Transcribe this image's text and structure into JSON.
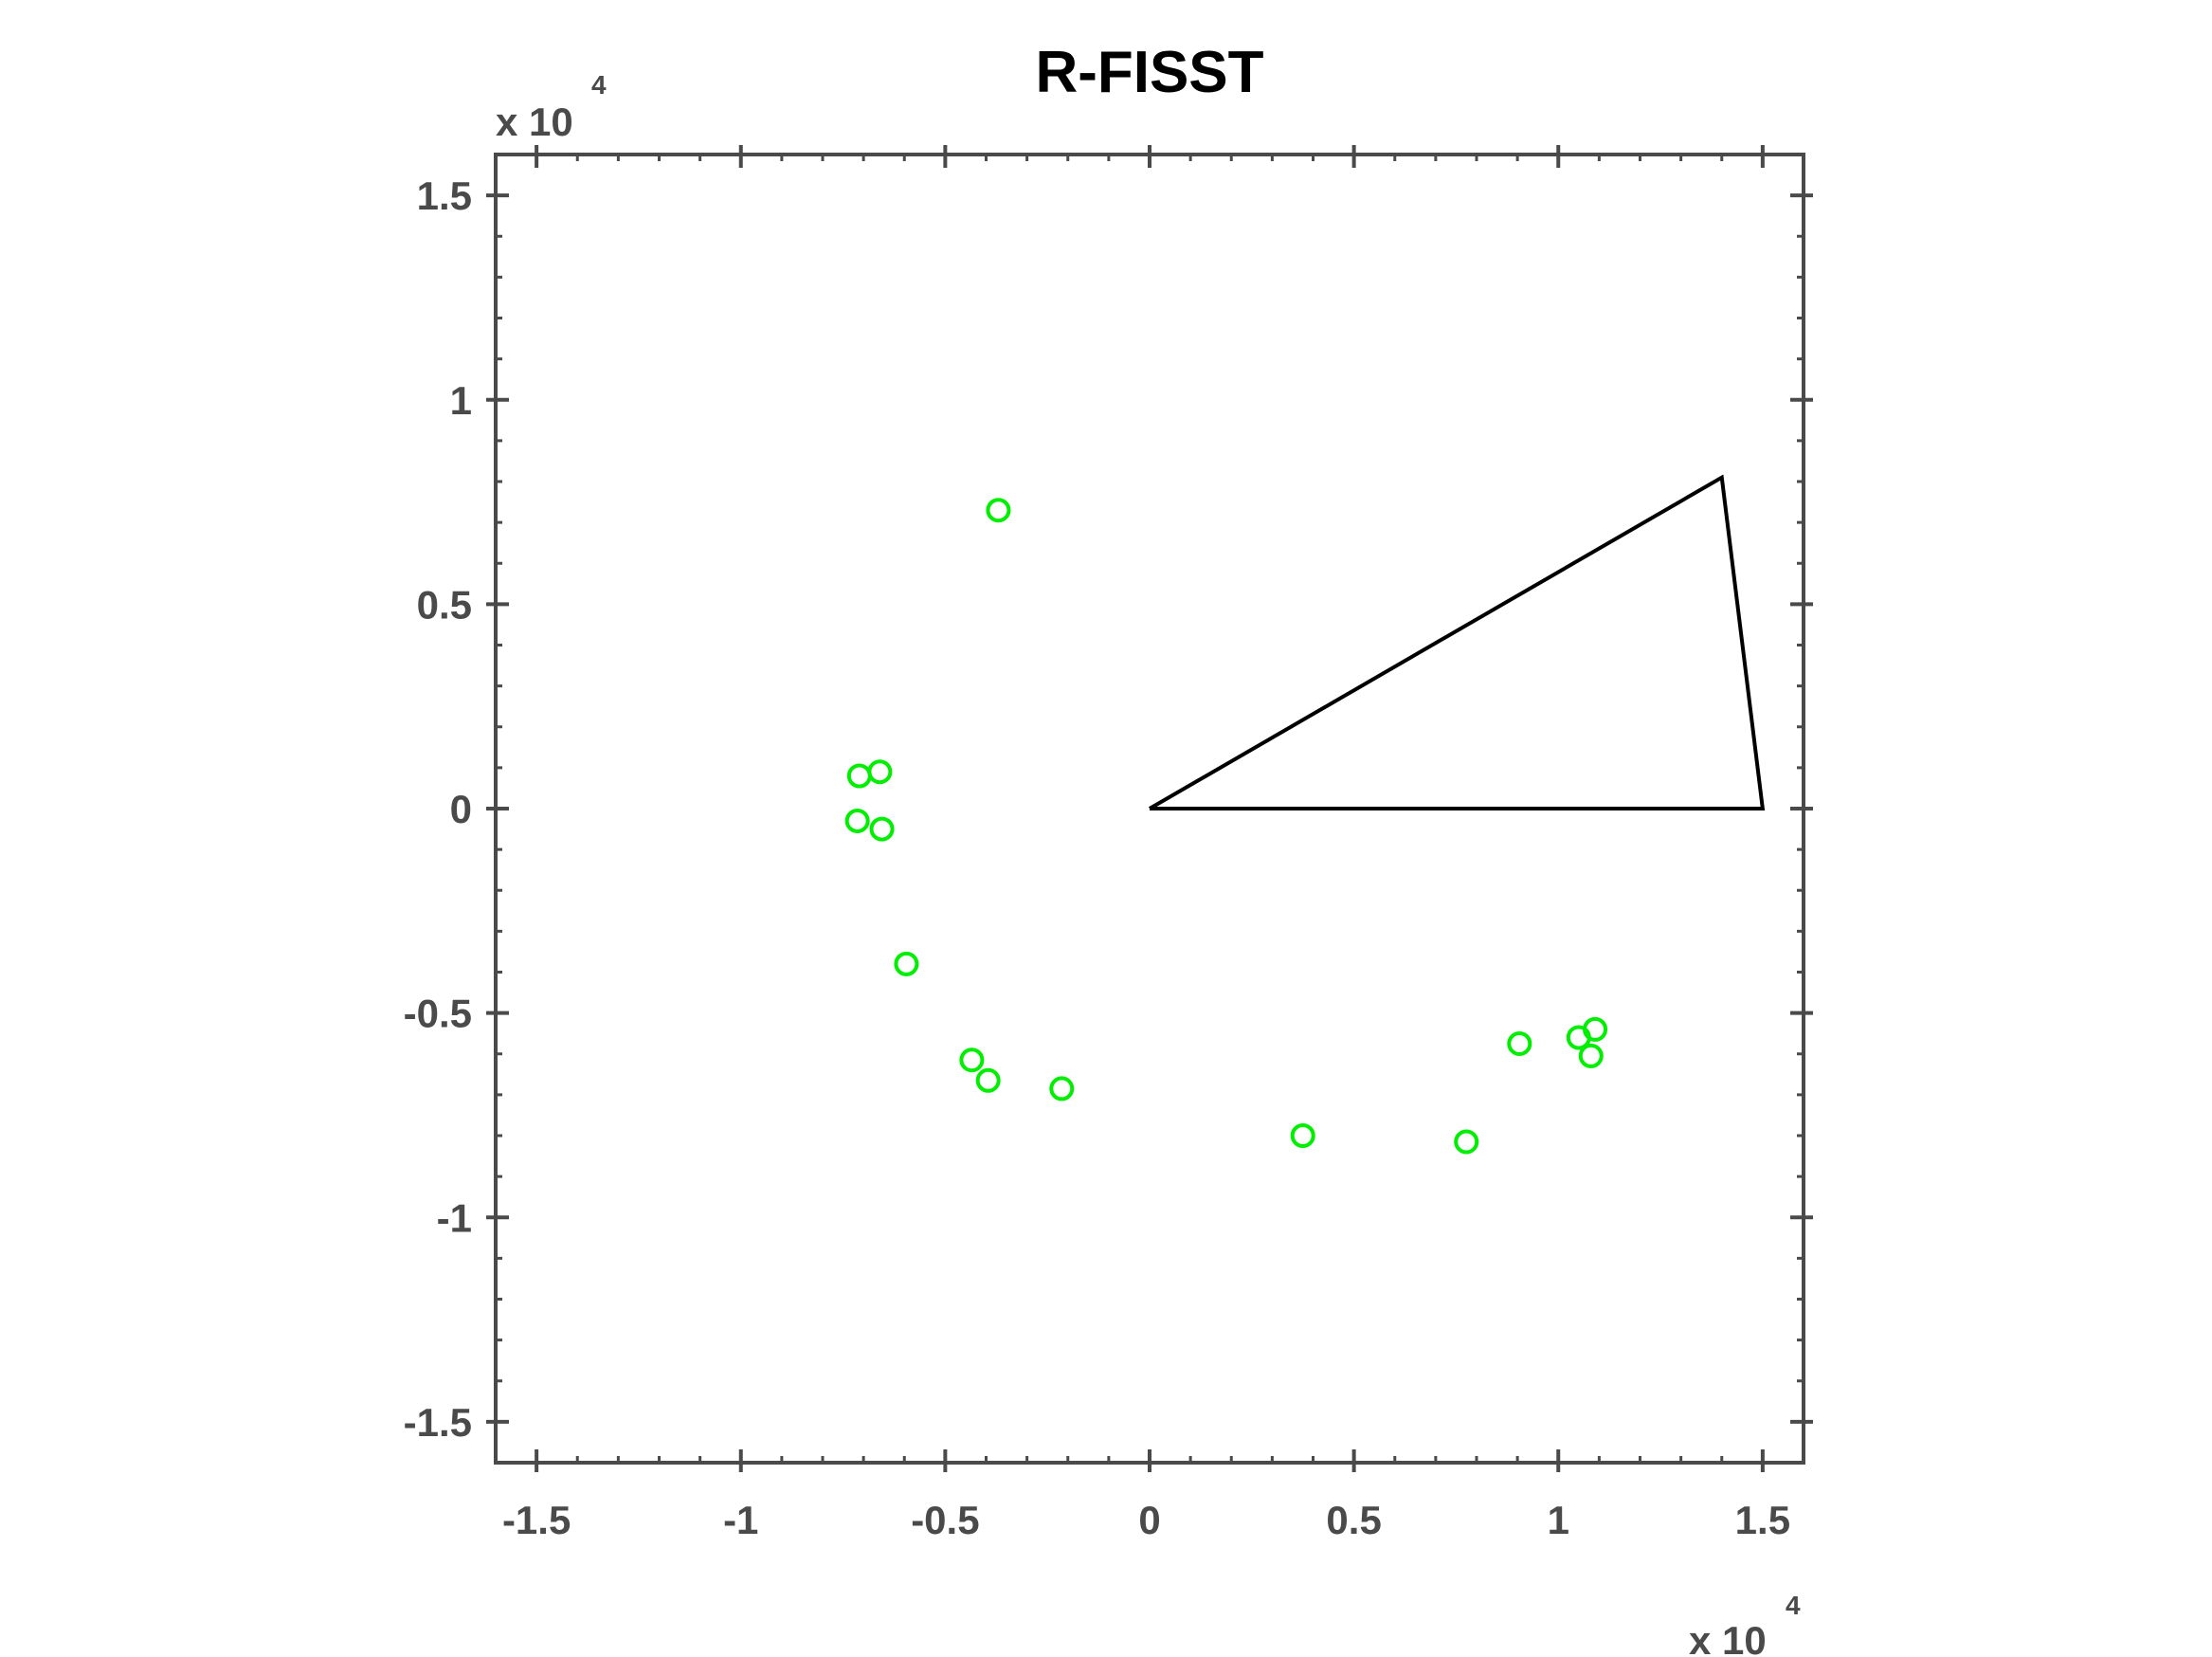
{
  "chart_data": {
    "type": "scatter",
    "title": "R-FISST",
    "xlabel": "",
    "ylabel": "",
    "xlim": [
      -1.6,
      1.6
    ],
    "ylim": [
      -1.6,
      1.6
    ],
    "x_multiplier": {
      "base": "x 10",
      "exp": "4"
    },
    "y_multiplier": {
      "base": "x 10",
      "exp": "4"
    },
    "x_ticks": [
      -1.5,
      -1,
      -0.5,
      0,
      0.5,
      1,
      1.5
    ],
    "x_tick_labels": [
      "-1.5",
      "-1",
      "-0.5",
      "0",
      "0.5",
      "1",
      "1.5"
    ],
    "y_ticks": [
      -1.5,
      -1,
      -0.5,
      0,
      0.5,
      1,
      1.5
    ],
    "y_tick_labels": [
      "-1.5",
      "-1",
      "-0.5",
      "0",
      "0.5",
      "1",
      "1.5"
    ],
    "grid": false,
    "legend": "none",
    "series": [
      {
        "type": "scatter",
        "marker": "circle-open",
        "color": "#00ee00",
        "points": [
          [
            -0.37,
            0.73
          ],
          [
            -0.71,
            0.08
          ],
          [
            -0.66,
            0.09
          ],
          [
            -0.715,
            -0.03
          ],
          [
            -0.655,
            -0.05
          ],
          [
            -0.595,
            -0.38
          ],
          [
            -0.435,
            -0.615
          ],
          [
            -0.395,
            -0.665
          ],
          [
            -0.215,
            -0.685
          ],
          [
            0.375,
            -0.8
          ],
          [
            0.775,
            -0.815
          ],
          [
            0.905,
            -0.575
          ],
          [
            1.05,
            -0.56
          ],
          [
            1.09,
            -0.54
          ],
          [
            1.08,
            -0.605
          ]
        ]
      },
      {
        "type": "polygon",
        "color": "#000000",
        "points": [
          [
            0,
            0
          ],
          [
            1.4,
            0.81
          ],
          [
            1.5,
            0
          ],
          [
            0,
            0
          ]
        ]
      }
    ]
  }
}
